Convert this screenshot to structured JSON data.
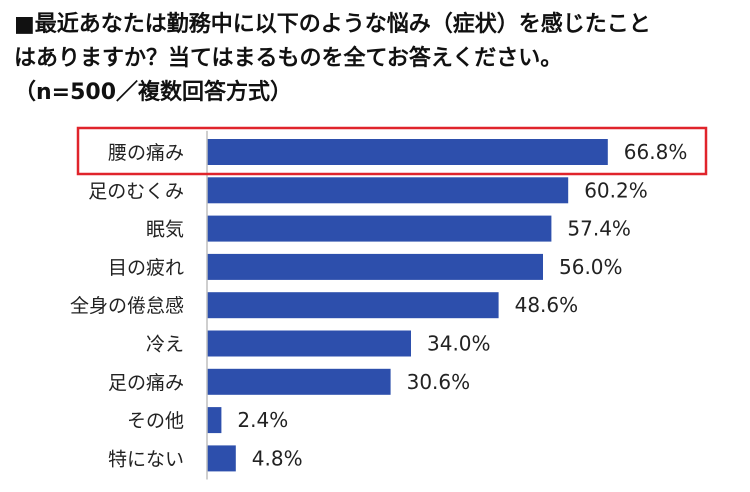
{
  "title": {
    "line1": "■最近あなたは勤務中に以下のような悩み（症状）を感じたこと",
    "line2": "はありますか？当てはまるものを全てお答えください。",
    "line3": "（n=500／複数回答方式）"
  },
  "colors": {
    "bar": "#2d4fac",
    "axis": "#bfbfbf",
    "highlight": "#e0242b"
  },
  "chart_data": {
    "type": "bar",
    "orientation": "horizontal",
    "title": "最近あなたは勤務中に以下のような悩み（症状）を感じたことはありますか？当てはまるものを全てお答えください。（n=500／複数回答方式）",
    "categories": [
      "腰の痛み",
      "足のむくみ",
      "眠気",
      "目の疲れ",
      "全身の倦怠感",
      "冷え",
      "足の痛み",
      "その他",
      "特にない"
    ],
    "values": [
      66.8,
      60.2,
      57.4,
      56.0,
      48.6,
      34.0,
      30.6,
      2.4,
      4.8
    ],
    "value_labels": [
      "66.8%",
      "60.2%",
      "57.4%",
      "56.0%",
      "48.6%",
      "34.0%",
      "30.6%",
      "2.4%",
      "4.8%"
    ],
    "xlim": [
      0,
      100
    ],
    "highlighted_category": "腰の痛み",
    "unit": "%"
  }
}
